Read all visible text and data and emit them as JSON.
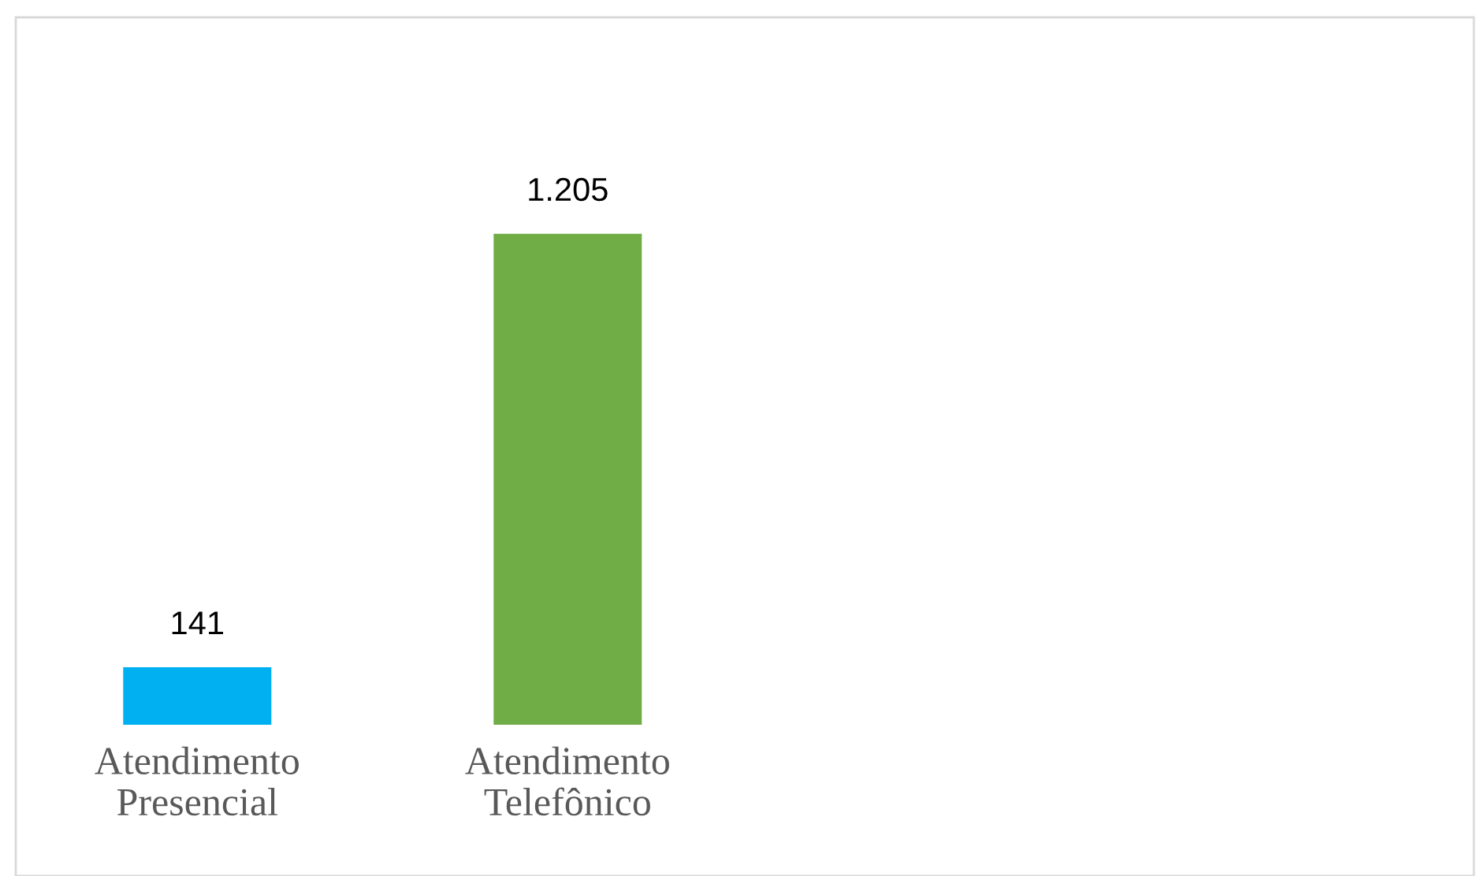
{
  "chart_data": {
    "type": "bar",
    "categories": [
      "Atendimento Presencial",
      "Atendimento Telefônico"
    ],
    "values": [
      141,
      1205
    ],
    "colors": [
      "#00b0f0",
      "#70ad47"
    ],
    "value_labels": [
      "141",
      "1.205"
    ]
  }
}
